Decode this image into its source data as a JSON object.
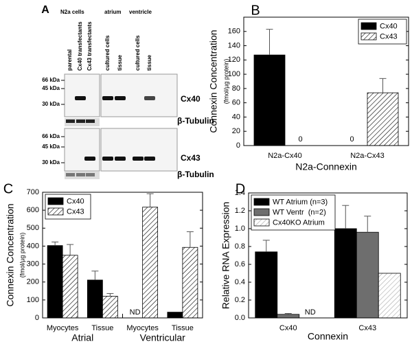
{
  "blot": {
    "panel": "A",
    "groups": [
      "N2a cells",
      "atrium",
      "ventricle"
    ],
    "lanes": [
      "parental",
      "Cx40 transfectants",
      "Cx43 transfectants",
      "cultured cells",
      "tissue",
      "cultured cells",
      "tissue"
    ],
    "blots": [
      {
        "markers": [
          "66 kDa",
          "45 kDa",
          "30 kDa"
        ],
        "protein": "Cx40",
        "loading": "β-Tubulin"
      },
      {
        "markers": [
          "66 kDa",
          "45 kDa",
          "30 kDa"
        ],
        "protein": "Cx43",
        "loading": "β-Tubulin"
      }
    ]
  },
  "chart_data": [
    {
      "type": "bar",
      "panel": "B",
      "y_label": "Connexin Concentration",
      "y_unit": "(fmol/µg protein)",
      "x_label": "N2a-Connexin",
      "categories": [
        "N2a-Cx40",
        "N2a-Cx43"
      ],
      "series": [
        {
          "name": "Cx40",
          "color": "#000000",
          "values": [
            127,
            0
          ],
          "errors": [
            36,
            null
          ]
        },
        {
          "name": "Cx43",
          "color": "#000000",
          "pattern": "hatch",
          "values": [
            0,
            74
          ],
          "errors": [
            null,
            20
          ]
        }
      ],
      "zero_labels": true,
      "ylim": [
        0,
        180
      ],
      "yticks": [
        0,
        20,
        40,
        60,
        80,
        100,
        120,
        140,
        160
      ],
      "legend": "upper right"
    },
    {
      "type": "bar",
      "panel": "C",
      "y_label": "Connexin Concentration",
      "y_unit": "(fmol/µg protein)",
      "categories": [
        "Myocytes",
        "Tissue",
        "Myocytes",
        "Tissue"
      ],
      "group_labels": [
        "Atrial",
        "Ventricular"
      ],
      "series": [
        {
          "name": "Cx40",
          "color": "#000000",
          "values": [
            403,
            211,
            null,
            32
          ],
          "errors": [
            20,
            50,
            null,
            null
          ],
          "value_labels": [
            null,
            null,
            "ND",
            null
          ]
        },
        {
          "name": "Cx43",
          "color": "#000000",
          "pattern": "hatch",
          "values": [
            349,
            121,
            617,
            393
          ],
          "errors": [
            60,
            15,
            75,
            87
          ]
        }
      ],
      "ylim": [
        0,
        700
      ],
      "yticks": [
        0,
        100,
        200,
        300,
        400,
        500,
        600,
        700
      ],
      "legend": "upper left"
    },
    {
      "type": "bar",
      "panel": "D",
      "y_label": "Relative RNA Expression",
      "x_label": "Connexin",
      "categories": [
        "Cx40",
        "Cx43"
      ],
      "series": [
        {
          "name": "WT Atrium (n=3)",
          "color": "#000000",
          "values": [
            0.74,
            1.0
          ],
          "errors": [
            0.13,
            0.26
          ]
        },
        {
          "name": "WT Ventr  (n=2)",
          "color": "#6e6e6e",
          "values": [
            0.04,
            0.96
          ],
          "errors": [
            0.01,
            0.18
          ]
        },
        {
          "name": "Cx40KO Atrium",
          "color": "#a8a8a8",
          "pattern": "hatch",
          "values": [
            null,
            0.5
          ],
          "errors": [
            null,
            null
          ],
          "value_labels": [
            "ND",
            null
          ]
        }
      ],
      "ylim": [
        0,
        1.4
      ],
      "yticks": [
        {
          "value": 0,
          "label": "0.0"
        },
        0.2,
        0.4,
        0.6,
        0.8,
        {
          "value": 1,
          "label": "1.0"
        },
        1.2,
        1.4
      ],
      "legend": "upper left"
    }
  ]
}
